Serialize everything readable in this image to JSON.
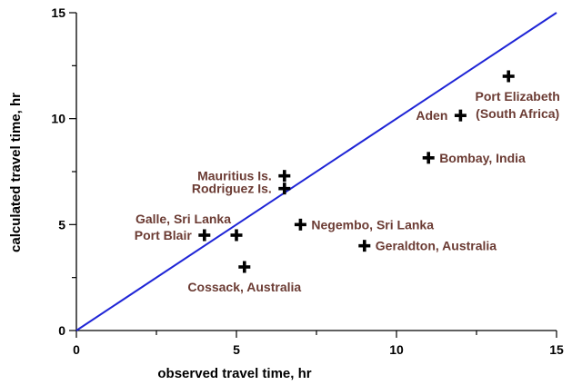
{
  "chart_data": {
    "type": "scatter",
    "xlabel": "observed travel time, hr",
    "ylabel": "calculated travel time, hr",
    "xlim": [
      0,
      15
    ],
    "ylim": [
      0,
      15
    ],
    "x_ticks": [
      0,
      5,
      10,
      15
    ],
    "y_ticks": [
      0,
      5,
      10,
      15
    ],
    "x_minor_step": 2.5,
    "y_minor_step": 2.5,
    "grid": false,
    "reference_line": {
      "from": [
        0,
        0
      ],
      "to": [
        15,
        15
      ],
      "color": "#1f25d6"
    },
    "marker_color": "#000000",
    "label_color": "#6b3b33",
    "points": [
      {
        "x": 13.5,
        "y": 12.0,
        "label": "Port Elizabeth (South Africa)",
        "label_pos": "below-left"
      },
      {
        "x": 12.0,
        "y": 10.15,
        "label": "Aden",
        "label_pos": "left"
      },
      {
        "x": 11.0,
        "y": 8.15,
        "label": "Bombay, India",
        "label_pos": "right"
      },
      {
        "x": 6.5,
        "y": 7.3,
        "label": "Mauritius Is.",
        "label_pos": "left"
      },
      {
        "x": 6.5,
        "y": 6.7,
        "label": "Rodriguez Is.",
        "label_pos": "left"
      },
      {
        "x": 7.0,
        "y": 5.0,
        "label": "Negembo, Sri Lanka",
        "label_pos": "right"
      },
      {
        "x": 4.0,
        "y": 4.5,
        "label": "Port Blair",
        "label_pos": "left"
      },
      {
        "x": 5.0,
        "y": 4.5,
        "label": "Galle, Sri Lanka",
        "label_pos": "above-left"
      },
      {
        "x": 9.0,
        "y": 4.0,
        "label": "Geraldton, Australia",
        "label_pos": "right"
      },
      {
        "x": 5.25,
        "y": 3.0,
        "label": "Cossack, Australia",
        "label_pos": "below"
      }
    ]
  }
}
